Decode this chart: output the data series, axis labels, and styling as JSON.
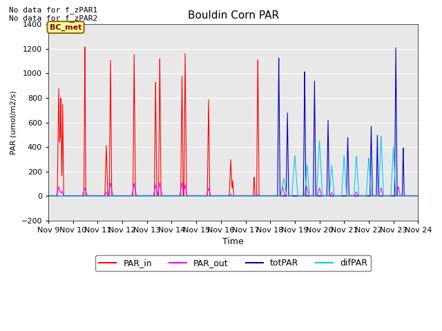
{
  "title": "Bouldin Corn PAR",
  "ylabel": "PAR (umol/m2/s)",
  "xlabel": "Time",
  "ylim": [
    -200,
    1400
  ],
  "yticks": [
    -200,
    0,
    200,
    400,
    600,
    800,
    1000,
    1200,
    1400
  ],
  "xtick_labels": [
    "Nov 9",
    "Nov 10",
    "Nov 11",
    "Nov 12",
    "Nov 13",
    "Nov 14",
    "Nov 15",
    "Nov 16",
    "Nov 17",
    "Nov 18",
    "Nov 19",
    "Nov 20",
    "Nov 21",
    "Nov 22",
    "Nov 23",
    "Nov 24"
  ],
  "no_data_text": [
    "No data for f_zPAR1",
    "No data for f_zPAR2"
  ],
  "label_box_text": "BC_met",
  "colors": {
    "PAR_in": "#ff0000",
    "PAR_out": "#ff00ff",
    "totPAR": "#0000bb",
    "difPAR": "#00ccee"
  },
  "bg_color": "#e8e8e8"
}
